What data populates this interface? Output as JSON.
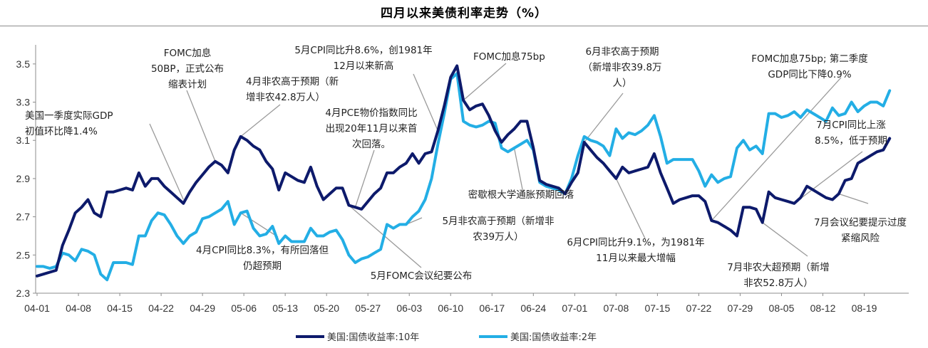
{
  "chart_data": {
    "type": "line",
    "title": "四月以来美债利率走势（%）",
    "ylim": [
      2.3,
      3.6
    ],
    "yticks": [
      "2.3",
      "2.5",
      "2.7",
      "2.9",
      "3.1",
      "3.3",
      "3.5"
    ],
    "grid": false,
    "legend_position": "bottom",
    "x_tick_labels": [
      "04-01",
      "04-08",
      "04-15",
      "04-22",
      "04-29",
      "05-06",
      "05-13",
      "05-20",
      "05-27",
      "06-03",
      "06-10",
      "06-17",
      "06-24",
      "07-01",
      "07-08",
      "07-15",
      "07-22",
      "07-29",
      "08-05",
      "08-12",
      "08-19"
    ],
    "series": [
      {
        "name": "美国:国债收益率:10年",
        "color": "#0d1a6b",
        "points": [
          [
            0,
            2.39
          ],
          [
            1,
            2.4
          ],
          [
            2,
            2.41
          ],
          [
            3,
            2.42
          ],
          [
            4,
            2.55
          ],
          [
            5,
            2.63
          ],
          [
            6,
            2.72
          ],
          [
            7,
            2.75
          ],
          [
            8,
            2.79
          ],
          [
            9,
            2.72
          ],
          [
            10,
            2.7
          ],
          [
            11,
            2.83
          ],
          [
            12,
            2.83
          ],
          [
            13,
            2.84
          ],
          [
            14,
            2.85
          ],
          [
            15,
            2.84
          ],
          [
            16,
            2.93
          ],
          [
            17,
            2.86
          ],
          [
            18,
            2.9
          ],
          [
            19,
            2.9
          ],
          [
            20,
            2.86
          ],
          [
            21,
            2.83
          ],
          [
            22,
            2.8
          ],
          [
            23,
            2.77
          ],
          [
            24,
            2.83
          ],
          [
            25,
            2.88
          ],
          [
            26,
            2.92
          ],
          [
            27,
            2.96
          ],
          [
            28,
            2.99
          ],
          [
            29,
            2.97
          ],
          [
            30,
            2.93
          ],
          [
            31,
            3.05
          ],
          [
            32,
            3.12
          ],
          [
            33,
            3.1
          ],
          [
            34,
            3.07
          ],
          [
            35,
            3.05
          ],
          [
            36,
            2.99
          ],
          [
            37,
            2.95
          ],
          [
            38,
            2.84
          ],
          [
            39,
            2.93
          ],
          [
            40,
            2.91
          ],
          [
            41,
            2.89
          ],
          [
            42,
            2.88
          ],
          [
            43,
            2.96
          ],
          [
            44,
            2.86
          ],
          [
            45,
            2.79
          ],
          [
            46,
            2.82
          ],
          [
            47,
            2.85
          ],
          [
            48,
            2.85
          ],
          [
            49,
            2.76
          ],
          [
            50,
            2.75
          ],
          [
            51,
            2.74
          ],
          [
            52,
            2.78
          ],
          [
            53,
            2.82
          ],
          [
            54,
            2.85
          ],
          [
            55,
            2.93
          ],
          [
            56,
            2.93
          ],
          [
            57,
            2.96
          ],
          [
            58,
            2.98
          ],
          [
            59,
            3.03
          ],
          [
            60,
            2.98
          ],
          [
            61,
            3.03
          ],
          [
            62,
            3.04
          ],
          [
            63,
            3.15
          ],
          [
            64,
            3.28
          ],
          [
            65,
            3.43
          ],
          [
            66,
            3.49
          ],
          [
            67,
            3.31
          ],
          [
            68,
            3.26
          ],
          [
            69,
            3.28
          ],
          [
            70,
            3.29
          ],
          [
            71,
            3.23
          ],
          [
            72,
            3.15
          ],
          [
            73,
            3.09
          ],
          [
            74,
            3.13
          ],
          [
            75,
            3.16
          ],
          [
            76,
            3.2
          ],
          [
            77,
            3.2
          ],
          [
            78,
            3.06
          ],
          [
            79,
            2.89
          ],
          [
            80,
            2.87
          ],
          [
            81,
            2.86
          ],
          [
            82,
            2.85
          ],
          [
            83,
            2.82
          ],
          [
            84,
            2.88
          ],
          [
            85,
            2.93
          ],
          [
            86,
            3.09
          ],
          [
            87,
            3.05
          ],
          [
            88,
            3.01
          ],
          [
            89,
            2.98
          ],
          [
            90,
            2.94
          ],
          [
            91,
            2.9
          ],
          [
            92,
            2.96
          ],
          [
            93,
            2.93
          ],
          [
            94,
            2.94
          ],
          [
            95,
            2.95
          ],
          [
            96,
            2.96
          ],
          [
            97,
            3.03
          ],
          [
            98,
            2.93
          ],
          [
            99,
            2.85
          ],
          [
            100,
            2.77
          ],
          [
            101,
            2.79
          ],
          [
            102,
            2.8
          ],
          [
            103,
            2.81
          ],
          [
            104,
            2.81
          ],
          [
            105,
            2.78
          ],
          [
            106,
            2.68
          ],
          [
            107,
            2.67
          ],
          [
            108,
            2.65
          ],
          [
            109,
            2.63
          ],
          [
            110,
            2.6
          ],
          [
            111,
            2.75
          ],
          [
            112,
            2.75
          ],
          [
            113,
            2.74
          ],
          [
            114,
            2.67
          ],
          [
            115,
            2.83
          ],
          [
            116,
            2.8
          ],
          [
            117,
            2.79
          ],
          [
            118,
            2.78
          ],
          [
            119,
            2.77
          ],
          [
            120,
            2.8
          ],
          [
            121,
            2.86
          ],
          [
            122,
            2.84
          ],
          [
            123,
            2.82
          ],
          [
            124,
            2.8
          ],
          [
            125,
            2.79
          ],
          [
            126,
            2.82
          ],
          [
            127,
            2.89
          ],
          [
            128,
            2.9
          ],
          [
            129,
            2.98
          ],
          [
            130,
            3.0
          ],
          [
            131,
            3.02
          ],
          [
            132,
            3.04
          ],
          [
            133,
            3.05
          ],
          [
            134,
            3.11
          ]
        ]
      },
      {
        "name": "美国:国债收益率:2年",
        "color": "#23aee5",
        "points": [
          [
            0,
            2.44
          ],
          [
            1,
            2.44
          ],
          [
            2,
            2.43
          ],
          [
            3,
            2.44
          ],
          [
            4,
            2.51
          ],
          [
            5,
            2.5
          ],
          [
            6,
            2.47
          ],
          [
            7,
            2.53
          ],
          [
            8,
            2.52
          ],
          [
            9,
            2.5
          ],
          [
            10,
            2.4
          ],
          [
            11,
            2.37
          ],
          [
            12,
            2.46
          ],
          [
            13,
            2.46
          ],
          [
            14,
            2.46
          ],
          [
            15,
            2.45
          ],
          [
            16,
            2.6
          ],
          [
            17,
            2.6
          ],
          [
            18,
            2.68
          ],
          [
            19,
            2.72
          ],
          [
            20,
            2.71
          ],
          [
            21,
            2.66
          ],
          [
            22,
            2.6
          ],
          [
            23,
            2.56
          ],
          [
            24,
            2.6
          ],
          [
            25,
            2.62
          ],
          [
            26,
            2.69
          ],
          [
            27,
            2.7
          ],
          [
            28,
            2.72
          ],
          [
            29,
            2.74
          ],
          [
            30,
            2.78
          ],
          [
            31,
            2.66
          ],
          [
            32,
            2.72
          ],
          [
            33,
            2.73
          ],
          [
            34,
            2.64
          ],
          [
            35,
            2.6
          ],
          [
            36,
            2.61
          ],
          [
            37,
            2.65
          ],
          [
            38,
            2.56
          ],
          [
            39,
            2.6
          ],
          [
            40,
            2.57
          ],
          [
            41,
            2.57
          ],
          [
            42,
            2.57
          ],
          [
            43,
            2.64
          ],
          [
            44,
            2.6
          ],
          [
            45,
            2.6
          ],
          [
            46,
            2.62
          ],
          [
            47,
            2.63
          ],
          [
            48,
            2.58
          ],
          [
            49,
            2.5
          ],
          [
            50,
            2.46
          ],
          [
            51,
            2.48
          ],
          [
            52,
            2.49
          ],
          [
            53,
            2.51
          ],
          [
            54,
            2.53
          ],
          [
            55,
            2.66
          ],
          [
            56,
            2.64
          ],
          [
            57,
            2.66
          ],
          [
            58,
            2.66
          ],
          [
            59,
            2.7
          ],
          [
            60,
            2.73
          ],
          [
            61,
            2.79
          ],
          [
            62,
            2.9
          ],
          [
            63,
            3.08
          ],
          [
            64,
            3.24
          ],
          [
            65,
            3.42
          ],
          [
            66,
            3.45
          ],
          [
            67,
            3.2
          ],
          [
            68,
            3.18
          ],
          [
            69,
            3.17
          ],
          [
            70,
            3.18
          ],
          [
            71,
            3.2
          ],
          [
            72,
            3.19
          ],
          [
            73,
            3.06
          ],
          [
            74,
            3.04
          ],
          [
            75,
            3.06
          ],
          [
            76,
            3.08
          ],
          [
            77,
            3.1
          ],
          [
            78,
            3.05
          ],
          [
            79,
            2.88
          ],
          [
            80,
            2.86
          ],
          [
            81,
            2.85
          ],
          [
            82,
            2.84
          ],
          [
            83,
            2.82
          ],
          [
            84,
            2.9
          ],
          [
            85,
            3.02
          ],
          [
            86,
            3.12
          ],
          [
            87,
            3.1
          ],
          [
            88,
            3.09
          ],
          [
            89,
            3.07
          ],
          [
            90,
            3.02
          ],
          [
            91,
            3.16
          ],
          [
            92,
            3.11
          ],
          [
            93,
            3.14
          ],
          [
            94,
            3.13
          ],
          [
            95,
            3.15
          ],
          [
            96,
            3.18
          ],
          [
            97,
            3.23
          ],
          [
            98,
            3.12
          ],
          [
            99,
            2.98
          ],
          [
            100,
            3.0
          ],
          [
            101,
            3.0
          ],
          [
            102,
            3.0
          ],
          [
            103,
            3.0
          ],
          [
            104,
            2.94
          ],
          [
            105,
            2.86
          ],
          [
            106,
            2.92
          ],
          [
            107,
            2.88
          ],
          [
            108,
            2.9
          ],
          [
            109,
            2.91
          ],
          [
            110,
            3.06
          ],
          [
            111,
            3.1
          ],
          [
            112,
            3.05
          ],
          [
            113,
            3.07
          ],
          [
            114,
            3.03
          ],
          [
            115,
            3.24
          ],
          [
            116,
            3.24
          ],
          [
            117,
            3.22
          ],
          [
            118,
            3.23
          ],
          [
            119,
            3.25
          ],
          [
            120,
            3.22
          ],
          [
            121,
            3.26
          ],
          [
            122,
            3.24
          ],
          [
            123,
            3.22
          ],
          [
            124,
            3.2
          ],
          [
            125,
            3.27
          ],
          [
            126,
            3.23
          ],
          [
            127,
            3.24
          ],
          [
            128,
            3.3
          ],
          [
            129,
            3.25
          ],
          [
            130,
            3.28
          ],
          [
            131,
            3.3
          ],
          [
            132,
            3.3
          ],
          [
            133,
            3.28
          ],
          [
            134,
            3.36
          ]
        ]
      }
    ],
    "annotations": [
      {
        "lines": [
          "FOMC加息",
          "50BP，正式公布",
          "缩表计划"
        ],
        "anchor": "middle",
        "pt": [
          28,
          2.99
        ]
      },
      {
        "lines": [
          "美国一季度实际GDP",
          "初值环比降1.4%"
        ],
        "anchor": "start",
        "pt": [
          23,
          2.79
        ]
      },
      {
        "lines": [
          "4月非农高于预期（新",
          "增非农42.8万人）"
        ],
        "anchor": "start",
        "pt": [
          32,
          3.12
        ]
      },
      {
        "lines": [
          "5月CPI同比升8.6%，创1981年",
          "12月以来新高"
        ],
        "anchor": "middle",
        "pt": [
          63,
          3.15
        ]
      },
      {
        "lines": [
          "4月PCE物价指数同比",
          "出现20年11月以来首",
          "次回落。"
        ],
        "anchor": "middle",
        "pt": [
          50,
          2.75
        ]
      },
      {
        "lines": [
          "FOMC加息75bp"
        ],
        "anchor": "start",
        "pt": [
          67,
          3.31
        ]
      },
      {
        "lines": [
          "6月非农高于预期",
          "（新增非农39.8万",
          "人）"
        ],
        "anchor": "middle",
        "pt": [
          86,
          3.09
        ]
      },
      {
        "lines": [
          "FOMC加息75bp; 第二季度",
          "GDP同比下降0.9%"
        ],
        "anchor": "middle",
        "pt": [
          106,
          2.68
        ]
      },
      {
        "lines": [
          "7月CPI同比上涨",
          "8.5%，低于预期"
        ],
        "anchor": "middle",
        "pt": [
          119,
          2.77
        ]
      },
      {
        "lines": [
          "密歇根大学通胀预期回落"
        ],
        "anchor": "middle",
        "pt": [
          75,
          3.06
        ]
      },
      {
        "lines": [
          "5月非农高于预期（新增非",
          "农39万人）"
        ],
        "anchor": "middle",
        "pt": [
          58,
          2.66
        ]
      },
      {
        "lines": [
          "4月CPI同比8.3%，有所回落但",
          "仍超预期"
        ],
        "anchor": "middle",
        "pt": [
          32,
          2.72
        ]
      },
      {
        "lines": [
          "5月FOMC会议纪要公布"
        ],
        "anchor": "middle",
        "pt": [
          49,
          2.76
        ]
      },
      {
        "lines": [
          "6月CPI同比升9.1%，为1981年",
          "11月以来最大增幅"
        ],
        "anchor": "middle",
        "pt": [
          91,
          2.9
        ]
      },
      {
        "lines": [
          "7月非农大超预期（新增",
          "非农52.8万人）"
        ],
        "anchor": "middle",
        "pt": [
          114,
          2.67
        ]
      },
      {
        "lines": [
          "7月会议纪要提示过度",
          "紧缩风险"
        ],
        "anchor": "middle",
        "pt": [
          126,
          2.82
        ]
      }
    ]
  }
}
